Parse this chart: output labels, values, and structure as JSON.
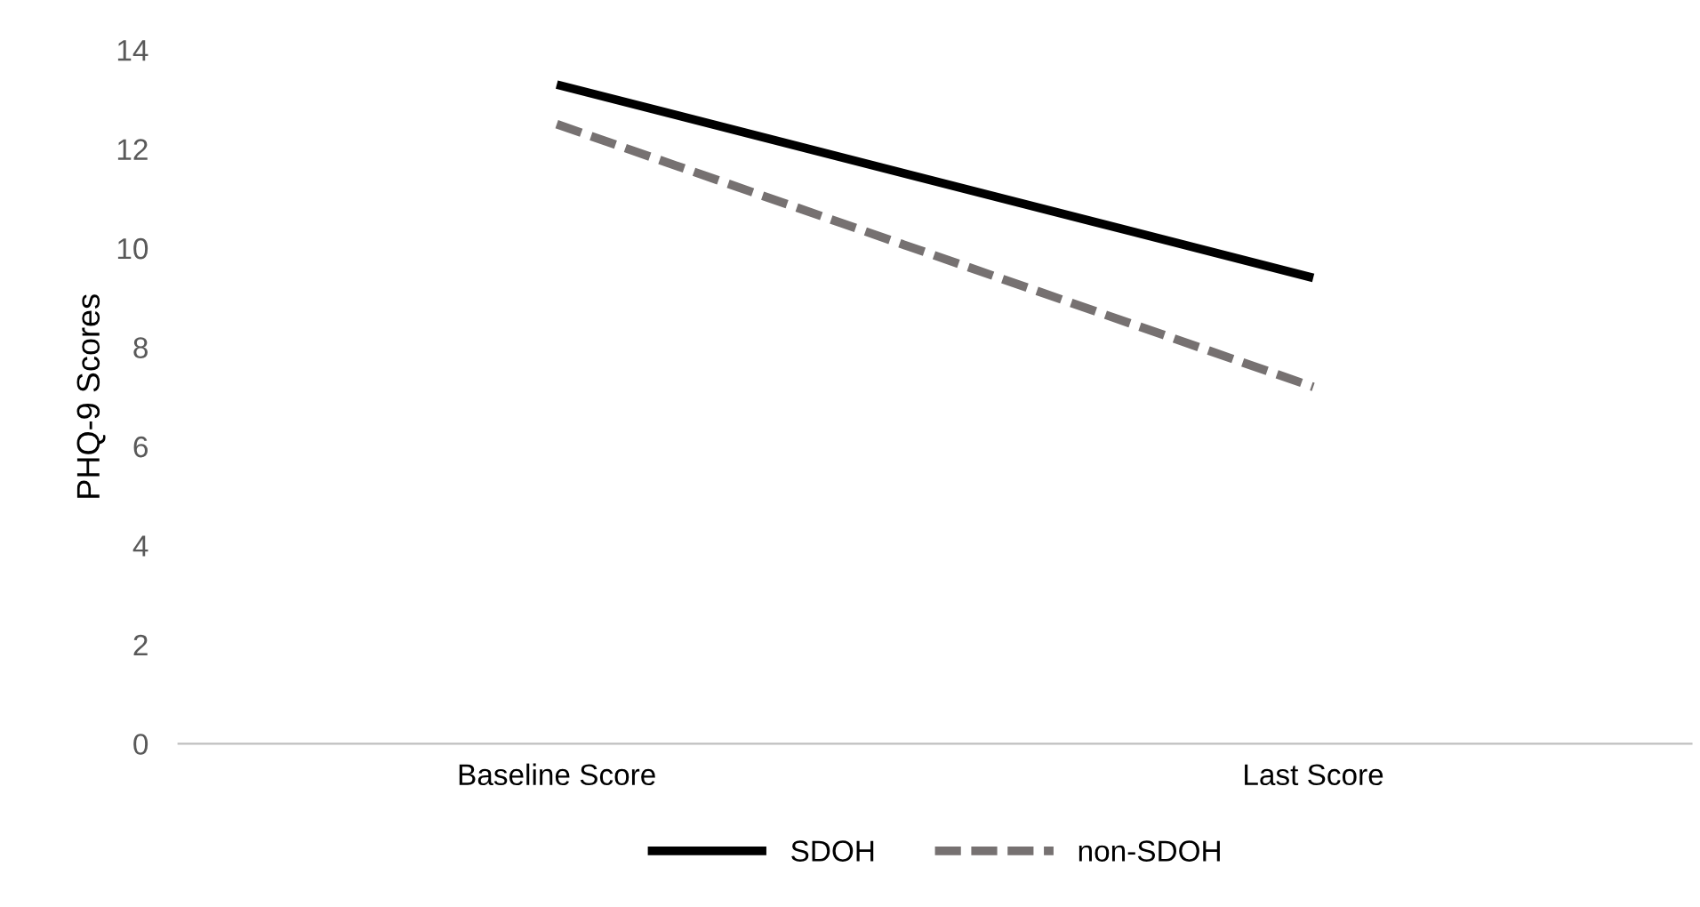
{
  "chart_data": {
    "type": "line",
    "ylabel": "PHQ-9 Scores",
    "categories": [
      "Baseline Score",
      "Last Score"
    ],
    "series": [
      {
        "name": "SDOH",
        "color": "#000000",
        "values": [
          13.3,
          9.4
        ],
        "line_style": "solid"
      },
      {
        "name": "non-SDOH",
        "color": "#767171",
        "values": [
          12.5,
          7.2
        ],
        "line_style": "dashed"
      }
    ],
    "ylim": [
      0,
      14
    ],
    "yticks": [
      0,
      2,
      4,
      6,
      8,
      10,
      12,
      14
    ],
    "grid": false,
    "legend": "bottom",
    "marker": "none"
  }
}
